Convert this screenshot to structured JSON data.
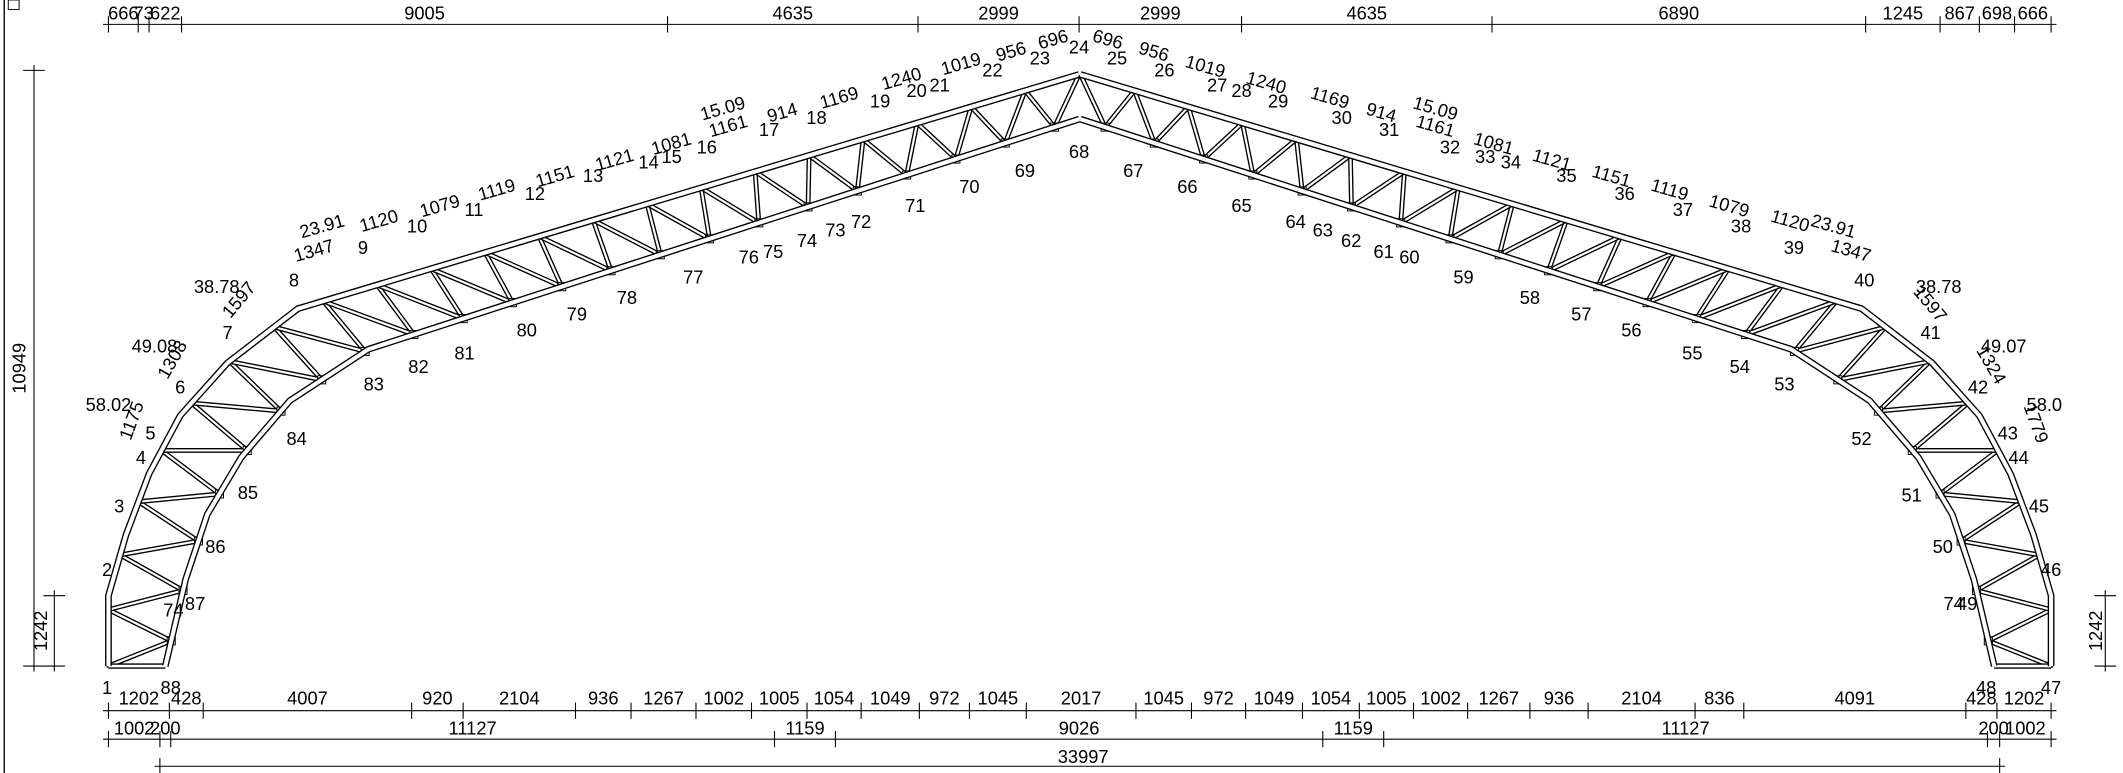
{
  "dimensions": {
    "top": [
      "666",
      "73",
      "622",
      "9005",
      "4635",
      "2999",
      "2999",
      "4635",
      "6890",
      "1245",
      "867",
      "698",
      "666"
    ],
    "bottom_1": [
      "1202",
      "428",
      "4007",
      "920",
      "2104",
      "936",
      "1267",
      "1002",
      "1005",
      "1054",
      "1049",
      "972",
      "1045",
      "2017",
      "1045",
      "972",
      "1049",
      "1054",
      "1005",
      "1002",
      "1267",
      "936",
      "2104",
      "836",
      "4091",
      "428",
      "1202"
    ],
    "bottom_2": [
      "1002",
      "200",
      "11127",
      "1159",
      "9026",
      "1159",
      "11127",
      "200",
      "1002"
    ],
    "overall": "33997",
    "height": "10949",
    "support_height_left": "1242",
    "support_height_right": "1242"
  },
  "nodes": [
    "1",
    "2",
    "3",
    "4",
    "5",
    "6",
    "7",
    "8",
    "9",
    "10",
    "11",
    "12",
    "13",
    "14",
    "15",
    "16",
    "17",
    "18",
    "19",
    "20",
    "21",
    "22",
    "23",
    "24",
    "25",
    "26",
    "27",
    "28",
    "29",
    "30",
    "31",
    "32",
    "33",
    "34",
    "35",
    "36",
    "37",
    "38",
    "39",
    "40",
    "41",
    "42",
    "43",
    "44",
    "45",
    "46",
    "47",
    "48",
    "49",
    "50",
    "51",
    "52",
    "53",
    "54",
    "55",
    "56",
    "57",
    "58",
    "59",
    "60",
    "61",
    "62",
    "63",
    "64",
    "65",
    "66",
    "67",
    "68",
    "69",
    "70",
    "71",
    "72",
    "73",
    "74",
    "75",
    "76",
    "77",
    "78",
    "79",
    "80",
    "81",
    "82",
    "83",
    "84",
    "85",
    "86",
    "87",
    "88"
  ],
  "member_labels": [
    "23.91",
    "1347",
    "1120",
    "1079",
    "1119",
    "1151",
    "1121",
    "1081",
    "1161",
    "15.09",
    "914",
    "1169",
    "1240",
    "1019",
    "956",
    "696",
    "696",
    "956",
    "1019",
    "1240",
    "1169",
    "914",
    "15.09",
    "1161",
    "1081",
    "1121",
    "1151",
    "1119",
    "1079",
    "1120",
    "23.91",
    "1347"
  ],
  "angle_labels": [
    "38.78",
    "1597",
    "49.08",
    "1308",
    "58.02",
    "1175",
    "74",
    "38.78",
    "1597",
    "49.07",
    "1324",
    "58.0",
    "1779",
    "74"
  ]
}
